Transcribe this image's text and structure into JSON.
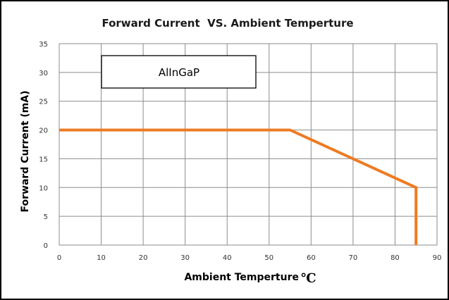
{
  "chart_data": {
    "type": "line",
    "title": "Forward Current  VS. Ambient Temperture",
    "xlabel": "Ambient Temperture",
    "xunit": "℃",
    "ylabel": "Forward Current (mA)",
    "xlim": [
      0,
      90
    ],
    "ylim": [
      0,
      35
    ],
    "xticks": [
      0,
      10,
      20,
      30,
      40,
      50,
      60,
      70,
      80,
      90
    ],
    "yticks": [
      0,
      5,
      10,
      15,
      20,
      25,
      30,
      35
    ],
    "grid": true,
    "legend": "none",
    "annotation": "AlInGaP",
    "series": [
      {
        "x": [
          0,
          55,
          85,
          85
        ],
        "y": [
          20,
          20,
          10,
          0
        ],
        "color": "#ee7b22"
      }
    ]
  }
}
